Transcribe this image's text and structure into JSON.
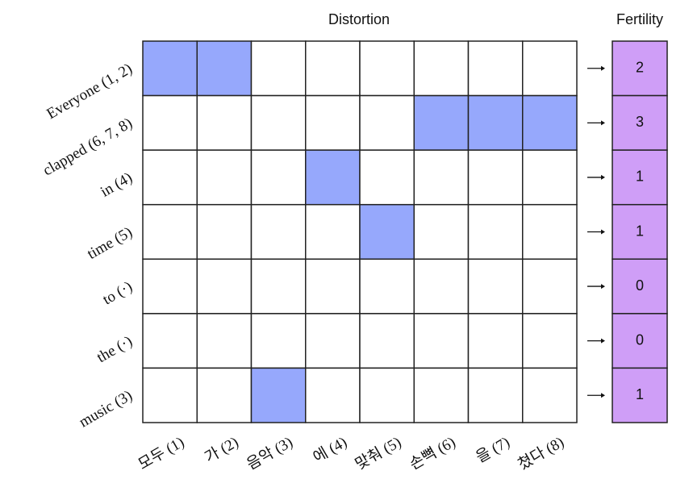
{
  "title": "Distortion",
  "fertility_title": "Fertility",
  "columns": [
    "모두 (1)",
    "가 (2)",
    "음악 (3)",
    "에 (4)",
    "맞춰 (5)",
    "손뼉 (6)",
    "을 (7)",
    "쳤다 (8)"
  ],
  "rows": [
    {
      "label": "Everyone (1, 2)",
      "aligned": [
        1,
        2
      ],
      "fertility": 2
    },
    {
      "label": "clapped (6, 7, 8)",
      "aligned": [
        6,
        7,
        8
      ],
      "fertility": 3
    },
    {
      "label": "in (4)",
      "aligned": [
        4
      ],
      "fertility": 1
    },
    {
      "label": "time (5)",
      "aligned": [
        5
      ],
      "fertility": 1
    },
    {
      "label": "to (·)",
      "aligned": [],
      "fertility": 0
    },
    {
      "label": "the (·)",
      "aligned": [],
      "fertility": 0
    },
    {
      "label": "music (3)",
      "aligned": [
        3
      ],
      "fertility": 1
    }
  ]
}
